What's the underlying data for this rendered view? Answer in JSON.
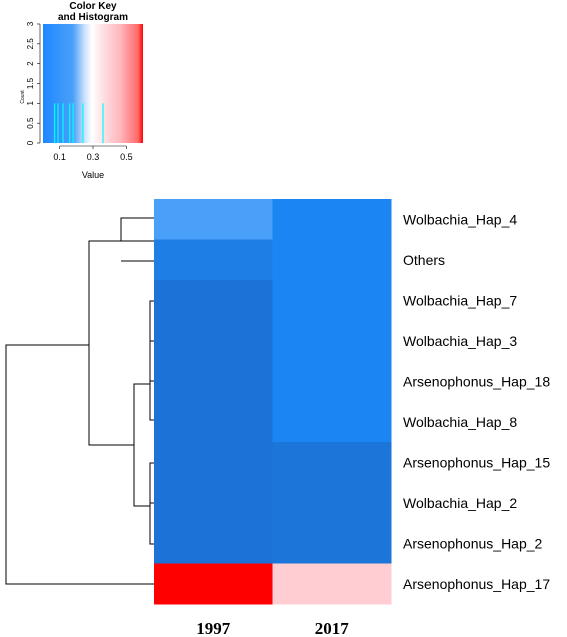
{
  "color_key": {
    "title_line1": "Color Key",
    "title_line2": "and Histogram",
    "xlabel": "Value",
    "ylabel": "Count",
    "x_ticks": [
      "0.1",
      "0.3",
      "0.5"
    ],
    "x_tick_values": [
      0.1,
      0.3,
      0.5
    ],
    "y_ticks": [
      "0",
      "0.5",
      "1",
      "1.5",
      "2",
      "2.5",
      "3"
    ],
    "y_tick_values": [
      0,
      0.5,
      1,
      1.5,
      2,
      2.5,
      3
    ],
    "xlim": [
      0.0,
      0.6
    ],
    "ylim": [
      0,
      3
    ],
    "gradient_stops": [
      "#1e88ff",
      "#ffffff",
      "#ff0000"
    ],
    "histogram_color": "#00ffff",
    "histogram_values": [
      0.07,
      0.09,
      0.12,
      0.16,
      0.18,
      0.24,
      0.36
    ],
    "histogram_counts": [
      1,
      1,
      1,
      1,
      1,
      1,
      1
    ]
  },
  "chart_data": {
    "type": "heatmap",
    "columns": [
      "1997",
      "2017"
    ],
    "rows": [
      "Wolbachia_Hap_4",
      "Others",
      "Wolbachia_Hap_7",
      "Wolbachia_Hap_3",
      "Arsenophonus_Hap_18",
      "Wolbachia_Hap_8",
      "Arsenophonus_Hap_15",
      "Wolbachia_Hap_2",
      "Arsenophonus_Hap_2",
      "Arsenophonus_Hap_17"
    ],
    "cell_colors": [
      [
        "#4aa0f8",
        "#1c85f4"
      ],
      [
        "#1f7ee6",
        "#1c85f4"
      ],
      [
        "#1c72d6",
        "#1c85f4"
      ],
      [
        "#1c72d6",
        "#1c85f4"
      ],
      [
        "#1c72d6",
        "#1c85f4"
      ],
      [
        "#1c72d6",
        "#1c85f4"
      ],
      [
        "#1c72d6",
        "#1c76da"
      ],
      [
        "#1c72d6",
        "#1c76da"
      ],
      [
        "#1c72d6",
        "#1c76da"
      ],
      [
        "#ff0000",
        "#ffcdd2"
      ]
    ],
    "values": [
      [
        0.16,
        0.1
      ],
      [
        0.09,
        0.1
      ],
      [
        0.07,
        0.1
      ],
      [
        0.07,
        0.1
      ],
      [
        0.07,
        0.1
      ],
      [
        0.07,
        0.1
      ],
      [
        0.07,
        0.08
      ],
      [
        0.07,
        0.08
      ],
      [
        0.07,
        0.08
      ],
      [
        0.6,
        0.45
      ]
    ],
    "row_dendrogram": "((((Wolbachia_Hap_4, Others), ((Wolbachia_Hap_7, Wolbachia_Hap_3, Arsenophonus_Hap_18, Wolbachia_Hap_8), (Arsenophonus_Hap_15, Wolbachia_Hap_2, Arsenophonus_Hap_2))), Arsenophonus_Hap_17)"
  }
}
